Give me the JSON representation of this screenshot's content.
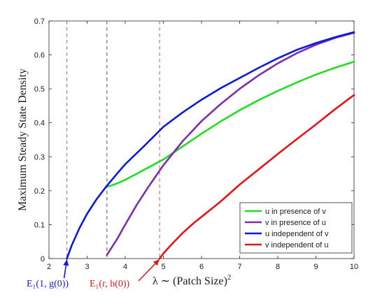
{
  "chart_data": {
    "type": "line",
    "title": "",
    "xlabel_prefix": "λ ∼ (Patch Size)",
    "xlabel_exp": "2",
    "ylabel": "Maximum Steady State Density",
    "xlim": [
      2,
      10
    ],
    "ylim": [
      0,
      0.7
    ],
    "xticks": [
      "2",
      "3",
      "4",
      "5",
      "6",
      "7",
      "8",
      "9",
      "10"
    ],
    "yticks": [
      "0",
      "0.1",
      "0.2",
      "0.3",
      "0.4",
      "0.5",
      "0.6",
      "0.7"
    ],
    "grid": false,
    "legend_position": "bottom-right",
    "series": [
      {
        "name": "u in presence of v",
        "color": "#22dd22",
        "x": [
          3.52,
          3.6,
          3.8,
          4.0,
          4.3,
          4.6,
          5.0,
          5.5,
          6.0,
          6.5,
          7.0,
          7.5,
          8.0,
          8.5,
          9.0,
          9.5,
          10.0
        ],
        "y": [
          0.212,
          0.214,
          0.222,
          0.232,
          0.25,
          0.268,
          0.292,
          0.33,
          0.368,
          0.404,
          0.437,
          0.467,
          0.494,
          0.519,
          0.542,
          0.562,
          0.58
        ]
      },
      {
        "name": "v in presence of u",
        "color": "#7b2fa8",
        "x": [
          3.52,
          3.6,
          3.8,
          4.0,
          4.3,
          4.6,
          5.0,
          5.5,
          6.0,
          6.5,
          7.0,
          7.5,
          8.0,
          8.5,
          9.0,
          9.5,
          10.0
        ],
        "y": [
          0.01,
          0.025,
          0.06,
          0.1,
          0.158,
          0.21,
          0.275,
          0.345,
          0.405,
          0.455,
          0.5,
          0.54,
          0.575,
          0.605,
          0.63,
          0.65,
          0.665
        ]
      },
      {
        "name": "u independent of v",
        "color": "#0b1bd6",
        "x": [
          2.47,
          2.6,
          2.8,
          3.0,
          3.25,
          3.5,
          3.8,
          4.0,
          4.5,
          5.0,
          5.5,
          6.0,
          6.5,
          7.0,
          7.5,
          8.0,
          8.5,
          9.0,
          9.5,
          10.0
        ],
        "y": [
          0.0,
          0.04,
          0.09,
          0.132,
          0.175,
          0.212,
          0.252,
          0.278,
          0.332,
          0.388,
          0.43,
          0.468,
          0.502,
          0.532,
          0.562,
          0.59,
          0.615,
          0.635,
          0.652,
          0.667
        ]
      },
      {
        "name": "v independent of u",
        "color": "#e81414",
        "x": [
          4.9,
          5.0,
          5.2,
          5.5,
          5.8,
          6.0,
          6.5,
          7.0,
          7.5,
          8.0,
          8.5,
          9.0,
          9.5,
          10.0
        ],
        "y": [
          0.0,
          0.015,
          0.04,
          0.075,
          0.105,
          0.123,
          0.168,
          0.218,
          0.263,
          0.308,
          0.352,
          0.395,
          0.44,
          0.482
        ]
      }
    ],
    "vlines": [
      {
        "x": 2.47,
        "color": "#6b6bdb"
      },
      {
        "x": 3.52,
        "color": "#555555"
      },
      {
        "x": 4.9,
        "color": "#e05a5a"
      }
    ],
    "annotations": [
      {
        "text": "E₁(1, g(0))",
        "x": 2.47,
        "color": "#1a1ad6"
      },
      {
        "text": "E₁(r, h(0))",
        "x": 4.9,
        "color": "#d81b1b"
      }
    ]
  }
}
